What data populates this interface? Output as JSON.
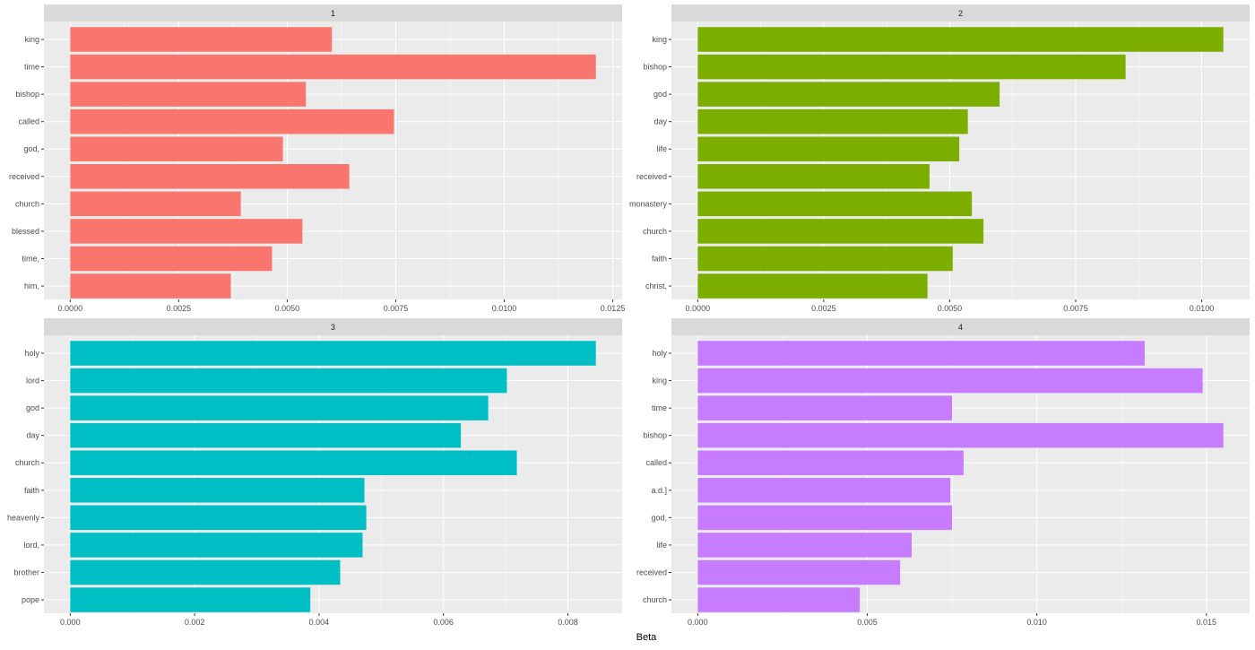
{
  "chart_data": {
    "type": "bar",
    "orientation": "horizontal",
    "xlabel": "Beta",
    "ylabel": "",
    "grid": true,
    "legend": "none",
    "facets": [
      {
        "strip": "1",
        "color": "#F8766D",
        "categories": [
          "king",
          "time",
          "bishop",
          "called",
          "god,",
          "received",
          "church",
          "blessed",
          "time,",
          "him,"
        ],
        "values": [
          0.00603,
          0.01211,
          0.00543,
          0.00746,
          0.0049,
          0.00643,
          0.00393,
          0.00535,
          0.00465,
          0.0037
        ],
        "ticks": [
          "0.0000",
          "0.0025",
          "0.0050",
          "0.0075",
          "0.0100",
          "0.0125"
        ],
        "tick_values": [
          0,
          0.0025,
          0.005,
          0.0075,
          0.01,
          0.0125
        ]
      },
      {
        "strip": "2",
        "color": "#7CAE00",
        "categories": [
          "king",
          "bishop",
          "god",
          "day",
          "life",
          "received",
          "monastery",
          "church",
          "faith",
          "christ,"
        ],
        "values": [
          0.01043,
          0.00849,
          0.00599,
          0.00536,
          0.00519,
          0.0046,
          0.00544,
          0.00567,
          0.00506,
          0.00456
        ],
        "ticks": [
          "0.0000",
          "0.0025",
          "0.0050",
          "0.0075",
          "0.0100"
        ],
        "tick_values": [
          0,
          0.0025,
          0.005,
          0.0075,
          0.01
        ]
      },
      {
        "strip": "3",
        "color": "#00BFC4",
        "categories": [
          "holy",
          "lord",
          "god",
          "day",
          "church",
          "faith",
          "heavenly",
          "lord,",
          "brother",
          "pope"
        ],
        "values": [
          0.00845,
          0.00702,
          0.00672,
          0.00628,
          0.00718,
          0.00473,
          0.00476,
          0.0047,
          0.00434,
          0.00386
        ],
        "ticks": [
          "0.000",
          "0.002",
          "0.004",
          "0.006",
          "0.008"
        ],
        "tick_values": [
          0,
          0.002,
          0.004,
          0.006,
          0.008
        ]
      },
      {
        "strip": "4",
        "color": "#C77CFF",
        "categories": [
          "holy",
          "king",
          "time",
          "bishop",
          "called",
          "a.d.]",
          "god,",
          "life",
          "received",
          "church"
        ],
        "values": [
          0.01318,
          0.01489,
          0.0075,
          0.0155,
          0.00784,
          0.00745,
          0.0075,
          0.00631,
          0.00597,
          0.00478
        ],
        "ticks": [
          "0.000",
          "0.005",
          "0.010",
          "0.015"
        ],
        "tick_values": [
          0,
          0.005,
          0.01,
          0.015
        ]
      }
    ]
  }
}
